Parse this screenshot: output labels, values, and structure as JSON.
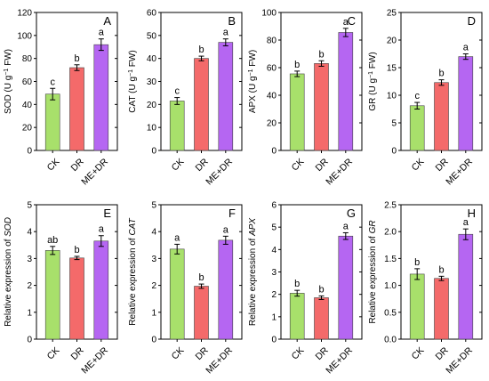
{
  "chart_data": [
    {
      "panel": "A",
      "type": "bar",
      "ylabel_parts": [
        "SOD (U g",
        "−1",
        " FW)"
      ],
      "ylim": [
        0,
        120
      ],
      "yticks": [
        0,
        20,
        40,
        60,
        80,
        100,
        120
      ],
      "categories": [
        "CK",
        "DR",
        "ME+DR"
      ],
      "values": [
        49,
        72,
        92
      ],
      "errors": [
        5,
        2.5,
        5
      ],
      "significance": [
        "c",
        "b",
        "a"
      ]
    },
    {
      "panel": "B",
      "type": "bar",
      "ylabel_parts": [
        "CAT (U g",
        "−1",
        " FW)"
      ],
      "ylim": [
        0,
        60
      ],
      "yticks": [
        0,
        10,
        20,
        30,
        40,
        50,
        60
      ],
      "categories": [
        "CK",
        "DR",
        "ME+DR"
      ],
      "values": [
        21.5,
        40,
        47
      ],
      "errors": [
        1.5,
        1,
        1.5
      ],
      "significance": [
        "c",
        "b",
        "a"
      ]
    },
    {
      "panel": "C",
      "type": "bar",
      "ylabel_parts": [
        "APX (U g",
        "−1",
        " FW)"
      ],
      "ylim": [
        0,
        100
      ],
      "yticks": [
        0,
        20,
        40,
        60,
        80,
        100
      ],
      "categories": [
        "CK",
        "DR",
        "ME+DR"
      ],
      "values": [
        55.5,
        63,
        85.5
      ],
      "errors": [
        2,
        2,
        3
      ],
      "significance": [
        "b",
        "b",
        "a"
      ]
    },
    {
      "panel": "D",
      "type": "bar",
      "ylabel_parts": [
        "GR (U g",
        "−1",
        " FW)"
      ],
      "ylim": [
        0,
        25
      ],
      "yticks": [
        0,
        5,
        10,
        15,
        20,
        25
      ],
      "categories": [
        "CK",
        "DR",
        "ME+DR"
      ],
      "values": [
        8.1,
        12.3,
        17
      ],
      "errors": [
        0.6,
        0.5,
        0.5
      ],
      "significance": [
        "c",
        "b",
        "a"
      ]
    },
    {
      "panel": "E",
      "type": "bar",
      "ylabel_parts": [
        "Relative expression of ",
        "SOD"
      ],
      "ylim": [
        0,
        5
      ],
      "yticks": [
        0,
        1,
        2,
        3,
        4,
        5
      ],
      "categories": [
        "CK",
        "DR",
        "ME+DR"
      ],
      "values": [
        3.3,
        3.02,
        3.65
      ],
      "errors": [
        0.15,
        0.06,
        0.2
      ],
      "significance": [
        "ab",
        "b",
        "a"
      ]
    },
    {
      "panel": "F",
      "type": "bar",
      "ylabel_parts": [
        "Relative expression of ",
        "CAT"
      ],
      "ylim": [
        0,
        5
      ],
      "yticks": [
        0,
        1,
        2,
        3,
        4,
        5
      ],
      "categories": [
        "CK",
        "DR",
        "ME+DR"
      ],
      "values": [
        3.35,
        1.97,
        3.68
      ],
      "errors": [
        0.18,
        0.08,
        0.15
      ],
      "significance": [
        "a",
        "b",
        "a"
      ]
    },
    {
      "panel": "G",
      "type": "bar",
      "ylabel_parts": [
        "Relative expression of ",
        "APX"
      ],
      "ylim": [
        0,
        6
      ],
      "yticks": [
        0,
        1,
        2,
        3,
        4,
        5,
        6
      ],
      "categories": [
        "CK",
        "DR",
        "ME+DR"
      ],
      "values": [
        2.05,
        1.85,
        4.6
      ],
      "errors": [
        0.13,
        0.08,
        0.15
      ],
      "significance": [
        "b",
        "b",
        "a"
      ]
    },
    {
      "panel": "H",
      "type": "bar",
      "ylabel_parts": [
        "Relative expression of ",
        "GR"
      ],
      "ylim": [
        0,
        2.5
      ],
      "yticks": [
        0.0,
        0.5,
        1.0,
        1.5,
        2.0,
        2.5
      ],
      "categories": [
        "CK",
        "DR",
        "ME+DR"
      ],
      "values": [
        1.21,
        1.13,
        1.95
      ],
      "errors": [
        0.1,
        0.04,
        0.1
      ],
      "significance": [
        "b",
        "b",
        "a"
      ]
    }
  ],
  "colors": {
    "CK": "#a8e06b",
    "DR": "#f46a6a",
    "ME+DR": "#b566f2"
  }
}
